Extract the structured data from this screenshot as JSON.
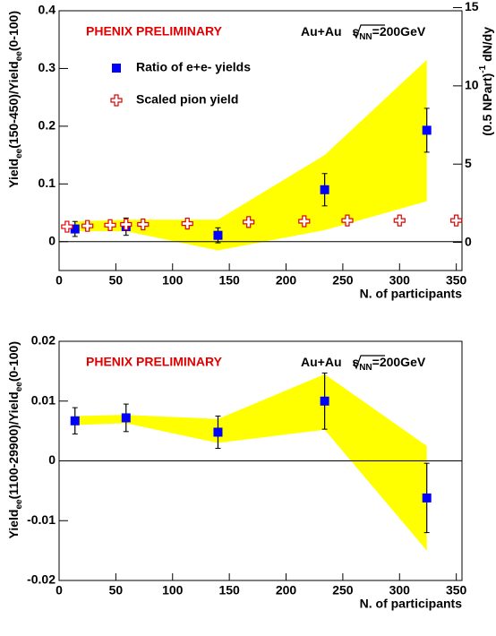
{
  "chart_data": [
    {
      "type": "scatter",
      "annotation": "PHENIX PRELIMINARY",
      "energy": {
        "prefix": "Au+Au ",
        "root": "s",
        "sub": "NN",
        "suffix": "=200GeV"
      },
      "x_label": "N. of participants",
      "y_label": [
        {
          "text": "Yield"
        },
        {
          "text": "ee",
          "sub": true
        },
        {
          "text": "(150-450)/Yield"
        },
        {
          "text": "ee",
          "sub": true
        },
        {
          "text": "(0-100)"
        }
      ],
      "y2_label": [
        {
          "text": "(0.5 NPart)"
        },
        {
          "text": "-1",
          "sup": true
        },
        {
          "text": " dN/dy"
        }
      ],
      "xlim": [
        0,
        355
      ],
      "xticks": [
        0,
        50,
        100,
        150,
        200,
        250,
        300,
        350
      ],
      "ylim": [
        -0.05,
        0.4
      ],
      "yticks": [
        0,
        0.1,
        0.2,
        0.3,
        0.4
      ],
      "y2lim": [
        -1.8,
        14.8
      ],
      "y2ticks": [
        0,
        5,
        10,
        15
      ],
      "band": {
        "color": "#ffff00",
        "x": [
          14,
          59,
          140,
          234,
          324
        ],
        "upper": [
          0.035,
          0.038,
          0.038,
          0.15,
          0.315
        ],
        "lower": [
          0.018,
          0.018,
          -0.015,
          0.02,
          0.07
        ]
      },
      "series": [
        {
          "name": "Ratio of e+e- yields",
          "color": "#0000ff",
          "marker": "square",
          "x": [
            14,
            59,
            140,
            234,
            324
          ],
          "values": [
            0.022,
            0.026,
            0.011,
            0.09,
            0.193
          ],
          "errors": [
            0.013,
            0.015,
            0.013,
            0.028,
            0.038
          ]
        },
        {
          "name": "Scaled pion yield",
          "color": "#e00000",
          "marker": "cross",
          "axis": "y2",
          "x": [
            7,
            25,
            45,
            59,
            74,
            113,
            167,
            216,
            254,
            300,
            350
          ],
          "values": [
            1.0,
            1.05,
            1.1,
            1.15,
            1.15,
            1.2,
            1.3,
            1.35,
            1.4,
            1.4,
            1.4
          ]
        }
      ]
    },
    {
      "type": "scatter",
      "annotation": "PHENIX PRELIMINARY",
      "energy": {
        "prefix": "Au+Au ",
        "root": "s",
        "sub": "NN",
        "suffix": "=200GeV"
      },
      "x_label": "N. of participants",
      "y_label": [
        {
          "text": "Yield"
        },
        {
          "text": "ee",
          "sub": true
        },
        {
          "text": "(1100-29900)/Yield"
        },
        {
          "text": "ee",
          "sub": true
        },
        {
          "text": "(0-100)"
        }
      ],
      "xlim": [
        0,
        355
      ],
      "xticks": [
        0,
        50,
        100,
        150,
        200,
        250,
        300,
        350
      ],
      "ylim": [
        -0.02,
        0.02
      ],
      "yticks": [
        -0.02,
        -0.01,
        0,
        0.01,
        0.02
      ],
      "band": {
        "color": "#ffff00",
        "x": [
          14,
          59,
          140,
          234,
          324
        ],
        "upper": [
          0.0075,
          0.0077,
          0.007,
          0.0145,
          0.0025
        ],
        "lower": [
          0.006,
          0.0063,
          0.003,
          0.0052,
          -0.015
        ]
      },
      "series": [
        {
          "color": "#0000ff",
          "marker": "square",
          "x": [
            14,
            59,
            140,
            234,
            324
          ],
          "values": [
            0.0067,
            0.0072,
            0.0048,
            0.01,
            -0.0062
          ],
          "errors": [
            0.0022,
            0.0023,
            0.0027,
            0.0047,
            0.0058
          ]
        }
      ]
    }
  ]
}
